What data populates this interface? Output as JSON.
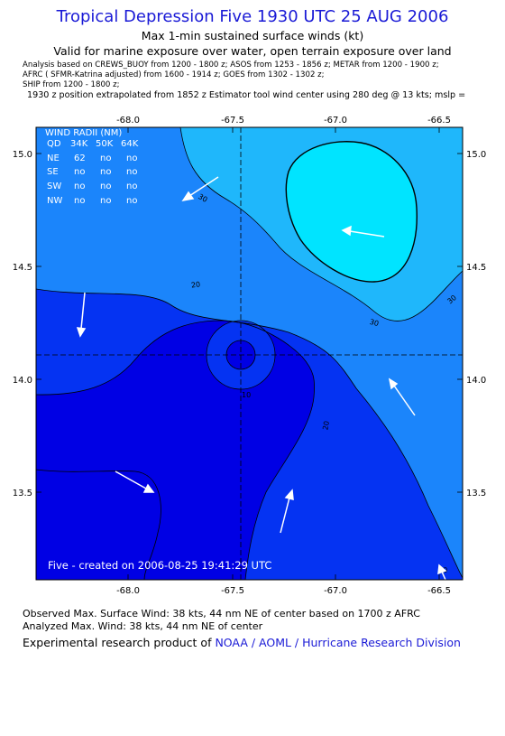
{
  "header": {
    "title": "Tropical Depression Five 1930 UTC 25 AUG 2006",
    "subtitle": "Max 1-min sustained surface winds (kt)",
    "subtitle2": "Valid for marine exposure over water, open terrain exposure over land",
    "notes": [
      "Analysis based on  CREWS_BUOY from 1200 - 1800 z;  ASOS from 1253 - 1856 z;  METAR from 1200 - 1900 z;",
      "AFRC ( SFMR-Katrina adjusted) from 1600 - 1914 z;  GOES from 1302 - 1302 z;",
      "SHIP from 1200 - 1800 z;"
    ],
    "position_note": "1930 z position extrapolated from 1852 z Estimator tool wind center using 280 deg @ 13 kts; mslp ="
  },
  "map": {
    "longitude_ticks": [
      "-68.0",
      "-67.5",
      "-67.0",
      "-66.5"
    ],
    "latitude_ticks": [
      "15.0",
      "14.5",
      "14.0",
      "13.5"
    ],
    "contour_labels": [
      "30",
      "20",
      "30",
      "30",
      "10",
      "20",
      "20"
    ],
    "wind_radii": {
      "title": "WIND RADII (NM)",
      "header": [
        "QD",
        "34K",
        "50K",
        "64K"
      ],
      "rows": [
        [
          "NE",
          "62",
          "no",
          "no"
        ],
        [
          "SE",
          "no",
          "no",
          "no"
        ],
        [
          "SW",
          "no",
          "no",
          "no"
        ],
        [
          "NW",
          "no",
          "no",
          "no"
        ]
      ]
    },
    "footer": "Five - created on 2006-08-25 19:41:29 UTC",
    "colors": {
      "band_0_10": "#0000e4",
      "band_10_20": "#0533f2",
      "band_20_30": "#1b85fb",
      "band_30_40": "#1fb7fb",
      "band_40_plus": "#00e4ff"
    }
  },
  "bottom": {
    "observed": "Observed Max. Surface Wind: 38 kts, 44 nm NE of center based on 1700 z AFRC",
    "analyzed": "Analyzed Max. Wind: 38 kts, 44 nm NE of center",
    "credit_prefix": "Experimental research product of ",
    "credit_org": "NOAA / AOML / Hurricane Research Division"
  }
}
